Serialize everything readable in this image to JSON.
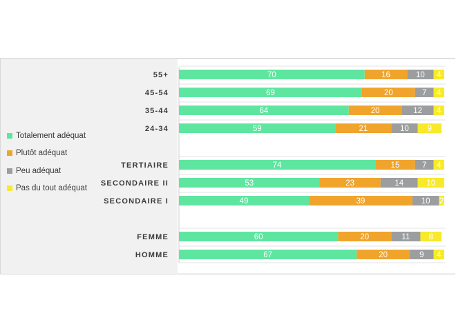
{
  "chart_data": {
    "type": "bar",
    "orientation": "horizontal",
    "stacked": true,
    "categories": [
      "55+",
      "45-54",
      "35-44",
      "24-34",
      "TERTIAIRE",
      "SECONDAIRE II",
      "SECONDAIRE I",
      "FEMME",
      "HOMME"
    ],
    "series": [
      {
        "name": "Totalement adéquat",
        "color": "#5ee6a0",
        "values": [
          70,
          69,
          64,
          59,
          74,
          53,
          49,
          60,
          67
        ]
      },
      {
        "name": "Plutôt adéquat",
        "color": "#f0a42c",
        "values": [
          16,
          20,
          20,
          21,
          15,
          23,
          39,
          20,
          20
        ]
      },
      {
        "name": "Peu adéquat",
        "color": "#9b9d9e",
        "values": [
          10,
          7,
          12,
          10,
          7,
          14,
          10,
          11,
          9
        ]
      },
      {
        "name": "Pas du tout adéquat",
        "color": "#f8ea2a",
        "values": [
          4,
          4,
          4,
          9,
          4,
          10,
          2,
          8,
          4
        ]
      }
    ],
    "title": "",
    "xlabel": "",
    "ylabel": "",
    "xlim": [
      0,
      100
    ],
    "grid": true,
    "legend_position": "left"
  }
}
